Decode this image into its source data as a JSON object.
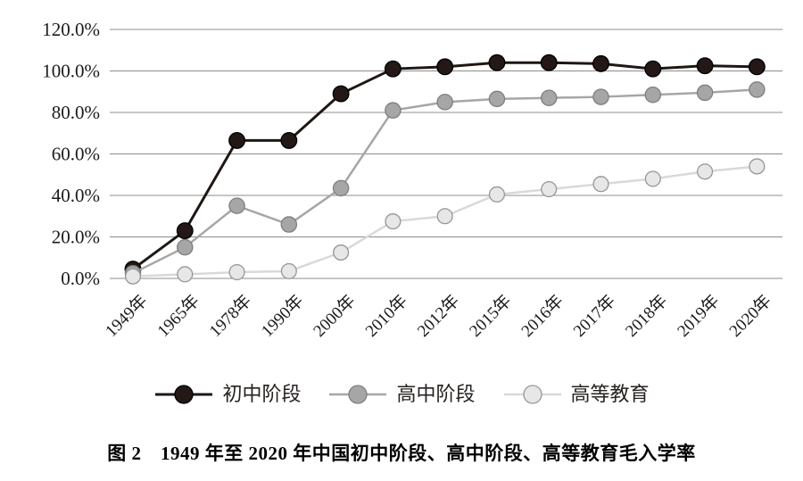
{
  "figure": {
    "caption": "图 2　1949 年至 2020 年中国初中阶段、高中阶段、高等教育毛入学率"
  },
  "chart_data": {
    "type": "line",
    "title": "",
    "xlabel": "",
    "ylabel": "",
    "categories": [
      "1949年",
      "1965年",
      "1978年",
      "1990年",
      "2000年",
      "2010年",
      "2012年",
      "2015年",
      "2016年",
      "2017年",
      "2018年",
      "2019年",
      "2020年"
    ],
    "series": [
      {
        "name": "初中阶段",
        "values": [
          4.5,
          23.0,
          66.5,
          66.5,
          89.0,
          101.0,
          102.0,
          104.0,
          104.0,
          103.5,
          101.0,
          102.5,
          102.0
        ],
        "line_color": "#1f1714",
        "marker_fill": "#231815",
        "marker_stroke": "#000000",
        "line_width": 3,
        "marker_radius": 8.8
      },
      {
        "name": "高中阶段",
        "values": [
          2.5,
          15.0,
          35.0,
          26.0,
          43.5,
          81.0,
          85.0,
          86.5,
          87.0,
          87.5,
          88.5,
          89.5,
          91.0
        ],
        "line_color": "#a6a6a6",
        "marker_fill": "#a6a6a6",
        "marker_stroke": "#7f7f7f",
        "line_width": 2.5,
        "marker_radius": 8.6
      },
      {
        "name": "高等教育",
        "values": [
          1.0,
          2.0,
          3.0,
          3.5,
          12.5,
          27.5,
          30.0,
          40.5,
          43.0,
          45.5,
          48.0,
          51.5,
          54.0
        ],
        "line_color": "#d9d9d9",
        "marker_fill": "#e7e7e7",
        "marker_stroke": "#969696",
        "line_width": 2.5,
        "marker_radius": 8.4
      }
    ],
    "ylim": [
      0,
      120
    ],
    "yticks": [
      0,
      20,
      40,
      60,
      80,
      100,
      120
    ],
    "ytick_labels": [
      "0.0%",
      "20.0%",
      "40.0%",
      "60.0%",
      "80.0%",
      "100.0%",
      "120.0%"
    ],
    "grid": "horizontal",
    "gridline_color": "#8c8c8c",
    "legend_position": "bottom"
  }
}
